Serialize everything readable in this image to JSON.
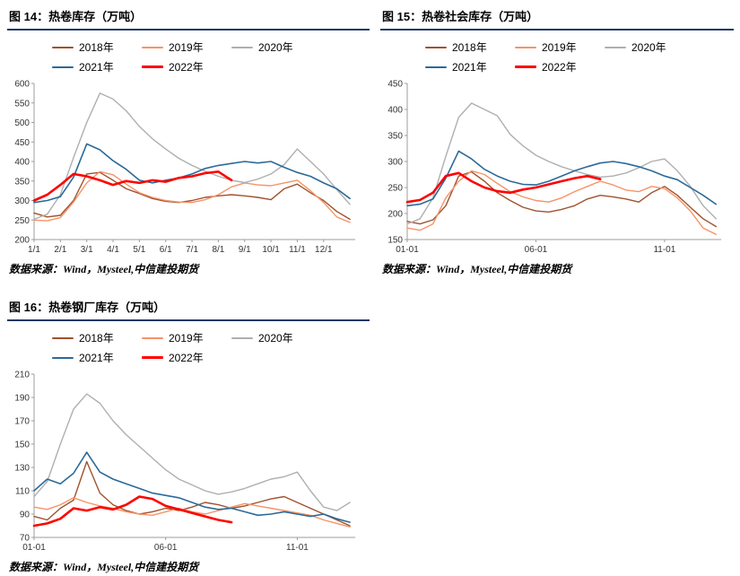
{
  "colors": {
    "title_underline": "#203864",
    "axis": "#9c9c9c",
    "series_2018": "#A0522D",
    "series_2019": "#F69368",
    "series_2020": "#AFAFAF",
    "series_2021": "#2B6A99",
    "series_2022": "#FF0000"
  },
  "panels": [
    {
      "title": "图 14：热卷库存（万吨）",
      "source": "数据来源：Wind，Mysteel,中信建投期货"
    },
    {
      "title": "图 15：热卷社会库存（万吨）",
      "source": "数据来源：Wind，Mysteel,中信建投期货"
    },
    {
      "title": "图 16：热卷钢厂库存（万吨）",
      "source": "数据来源：Wind，Mysteel,中信建投期货"
    }
  ],
  "chart_data": [
    {
      "type": "line",
      "title": "图 14：热卷库存（万吨）",
      "xlabel": "",
      "ylabel": "",
      "xlim": [
        0,
        12.2
      ],
      "ylim": [
        200,
        600
      ],
      "grid": false,
      "legend_position": "top",
      "y_ticks": [
        200,
        250,
        300,
        350,
        400,
        450,
        500,
        550,
        600
      ],
      "x_step": 0.5,
      "x_ticks": [
        {
          "pos": 0,
          "label": "1/1"
        },
        {
          "pos": 1,
          "label": "2/1"
        },
        {
          "pos": 2,
          "label": "3/1"
        },
        {
          "pos": 3,
          "label": "4/1"
        },
        {
          "pos": 4,
          "label": "5/1"
        },
        {
          "pos": 5,
          "label": "6/1"
        },
        {
          "pos": 6,
          "label": "7/1"
        },
        {
          "pos": 7,
          "label": "8/1"
        },
        {
          "pos": 8,
          "label": "9/1"
        },
        {
          "pos": 9,
          "label": "10/1"
        },
        {
          "pos": 10,
          "label": "11/1"
        },
        {
          "pos": 11,
          "label": "12/1"
        }
      ],
      "series": [
        {
          "name": "2018年",
          "color": "#A0522D",
          "width": 1.4,
          "x_start": 0,
          "values": [
            268,
            258,
            262,
            300,
            368,
            372,
            352,
            330,
            318,
            305,
            298,
            295,
            300,
            308,
            312,
            315,
            312,
            308,
            302,
            330,
            342,
            320,
            300,
            272,
            252
          ]
        },
        {
          "name": "2019年",
          "color": "#F69368",
          "width": 1.4,
          "x_start": 0,
          "values": [
            250,
            248,
            256,
            296,
            345,
            374,
            366,
            342,
            320,
            308,
            300,
            296,
            295,
            302,
            315,
            335,
            345,
            340,
            338,
            345,
            352,
            325,
            295,
            258,
            244
          ]
        },
        {
          "name": "2020年",
          "color": "#AFAFAF",
          "width": 1.4,
          "x_start": 0,
          "values": [
            252,
            265,
            315,
            410,
            500,
            575,
            560,
            530,
            490,
            458,
            432,
            408,
            390,
            375,
            362,
            352,
            346,
            355,
            368,
            392,
            432,
            400,
            368,
            328,
            290
          ]
        },
        {
          "name": "2021年",
          "color": "#2B6A99",
          "width": 1.6,
          "x_start": 0,
          "values": [
            295,
            300,
            310,
            360,
            445,
            430,
            402,
            380,
            352,
            345,
            352,
            358,
            368,
            382,
            390,
            395,
            400,
            396,
            400,
            385,
            372,
            362,
            345,
            330,
            305
          ]
        },
        {
          "name": "2022年",
          "color": "#FF0000",
          "width": 2.6,
          "x_start": 0,
          "values": [
            300,
            315,
            340,
            368,
            362,
            352,
            340,
            350,
            345,
            352,
            348,
            358,
            362,
            370,
            374,
            352
          ]
        }
      ]
    },
    {
      "type": "line",
      "title": "图 15：热卷社会库存（万吨）",
      "xlabel": "",
      "ylabel": "",
      "xlim": [
        0,
        12.2
      ],
      "ylim": [
        150,
        450
      ],
      "grid": false,
      "legend_position": "top",
      "y_ticks": [
        150,
        200,
        250,
        300,
        350,
        400,
        450
      ],
      "x_step": 0.5,
      "x_ticks": [
        {
          "pos": 0,
          "label": "01-01"
        },
        {
          "pos": 5,
          "label": "06-01"
        },
        {
          "pos": 10,
          "label": "11-01"
        }
      ],
      "series": [
        {
          "name": "2018年",
          "color": "#A0522D",
          "width": 1.4,
          "x_start": 0,
          "values": [
            185,
            180,
            188,
            215,
            272,
            280,
            262,
            240,
            225,
            212,
            205,
            203,
            208,
            215,
            228,
            235,
            232,
            228,
            222,
            240,
            252,
            235,
            212,
            190,
            175
          ]
        },
        {
          "name": "2019年",
          "color": "#F69368",
          "width": 1.4,
          "x_start": 0,
          "values": [
            172,
            168,
            180,
            230,
            262,
            282,
            275,
            258,
            242,
            232,
            225,
            222,
            230,
            242,
            252,
            262,
            255,
            245,
            242,
            252,
            248,
            230,
            205,
            172,
            160
          ]
        },
        {
          "name": "2020年",
          "color": "#AFAFAF",
          "width": 1.4,
          "x_start": 0,
          "values": [
            180,
            190,
            230,
            310,
            385,
            412,
            400,
            388,
            352,
            330,
            312,
            300,
            290,
            282,
            275,
            270,
            272,
            278,
            288,
            300,
            305,
            282,
            252,
            215,
            190
          ]
        },
        {
          "name": "2021年",
          "color": "#2B6A99",
          "width": 1.6,
          "x_start": 0,
          "values": [
            215,
            218,
            228,
            268,
            320,
            305,
            285,
            272,
            262,
            256,
            255,
            262,
            272,
            282,
            290,
            297,
            300,
            296,
            290,
            282,
            272,
            265,
            250,
            235,
            218
          ]
        },
        {
          "name": "2022年",
          "color": "#FF0000",
          "width": 2.6,
          "x_start": 0,
          "values": [
            222,
            226,
            240,
            272,
            278,
            262,
            250,
            243,
            240,
            246,
            250,
            256,
            262,
            268,
            272,
            266
          ]
        }
      ]
    },
    {
      "type": "line",
      "title": "图 16：热卷钢厂库存（万吨）",
      "xlabel": "",
      "ylabel": "",
      "xlim": [
        0,
        12.2
      ],
      "ylim": [
        70,
        210
      ],
      "grid": false,
      "legend_position": "top",
      "y_ticks": [
        70,
        90,
        110,
        130,
        150,
        170,
        190,
        210
      ],
      "x_step": 0.5,
      "x_ticks": [
        {
          "pos": 0,
          "label": "01-01"
        },
        {
          "pos": 5,
          "label": "06-01"
        },
        {
          "pos": 10,
          "label": "11-01"
        }
      ],
      "series": [
        {
          "name": "2018年",
          "color": "#A0522D",
          "width": 1.4,
          "x_start": 0,
          "values": [
            88,
            85,
            95,
            102,
            135,
            108,
            98,
            93,
            90,
            92,
            95,
            93,
            96,
            100,
            98,
            95,
            97,
            100,
            103,
            105,
            100,
            95,
            90,
            85,
            80
          ]
        },
        {
          "name": "2019年",
          "color": "#F69368",
          "width": 1.4,
          "x_start": 0,
          "values": [
            96,
            94,
            98,
            104,
            100,
            97,
            95,
            92,
            90,
            89,
            92,
            95,
            92,
            90,
            93,
            96,
            99,
            97,
            95,
            93,
            91,
            89,
            85,
            82,
            79
          ]
        },
        {
          "name": "2020年",
          "color": "#AFAFAF",
          "width": 1.4,
          "x_start": 0,
          "values": [
            105,
            118,
            150,
            180,
            193,
            185,
            170,
            158,
            148,
            138,
            128,
            120,
            115,
            110,
            107,
            109,
            112,
            116,
            120,
            122,
            126,
            110,
            96,
            93,
            100
          ]
        },
        {
          "name": "2021年",
          "color": "#2B6A99",
          "width": 1.6,
          "x_start": 0,
          "values": [
            110,
            120,
            116,
            125,
            143,
            126,
            120,
            116,
            112,
            108,
            106,
            104,
            100,
            96,
            94,
            95,
            92,
            89,
            90,
            92,
            90,
            88,
            90,
            86,
            83
          ]
        },
        {
          "name": "2022年",
          "color": "#FF0000",
          "width": 2.6,
          "x_start": 0,
          "values": [
            80,
            82,
            86,
            95,
            93,
            96,
            94,
            98,
            105,
            103,
            97,
            94,
            91,
            88,
            85,
            83
          ]
        }
      ]
    }
  ]
}
